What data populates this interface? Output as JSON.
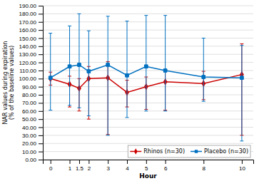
{
  "chart_data": {
    "type": "line",
    "x_label": "Hour",
    "y_label": "NAR values during expiration\n(% of the baseline values)",
    "x": [
      0,
      1,
      1.5,
      2,
      3,
      4,
      5,
      6,
      8,
      10
    ],
    "series": [
      {
        "name": "Rhinos (n=30)",
        "color": "#cc0000",
        "marker": "diamond",
        "values": [
          100.0,
          93.0,
          88.0,
          100.0,
          101.0,
          83.0,
          90.0,
          96.0,
          94.0,
          105.0
        ],
        "error_lower": [
          8,
          28,
          28,
          50,
          70,
          18,
          28,
          35,
          20,
          75
        ],
        "error_upper": [
          8,
          10,
          12,
          15,
          20,
          15,
          12,
          15,
          15,
          38
        ]
      },
      {
        "name": "Placebo (n=30)",
        "color": "#0070c0",
        "marker": "square",
        "values": [
          101.0,
          115.0,
          117.0,
          109.0,
          117.0,
          104.0,
          115.0,
          110.0,
          102.0,
          101.0
        ],
        "error_lower": [
          40,
          48,
          53,
          55,
          87,
          52,
          55,
          50,
          30,
          78
        ],
        "error_upper": [
          55,
          50,
          63,
          50,
          60,
          67,
          63,
          68,
          48,
          40
        ]
      }
    ],
    "xlim": [
      -0.4,
      10.6
    ],
    "xticks": [
      0,
      1,
      1.5,
      2,
      3,
      4,
      5,
      6,
      8,
      10
    ],
    "ylim": [
      0.0,
      190.0
    ],
    "yticks": [
      {
        "value": 0.0,
        "label": "0.00"
      },
      {
        "value": 10.0,
        "label": "10.00"
      },
      {
        "value": 20.0,
        "label": "20.00"
      },
      {
        "value": 30.0,
        "label": "30.00"
      },
      {
        "value": 40.0,
        "label": "40.00"
      },
      {
        "value": 50.0,
        "label": "50.00"
      },
      {
        "value": 60.0,
        "label": "60.00"
      },
      {
        "value": 70.0,
        "label": "70.00"
      },
      {
        "value": 80.0,
        "label": "80.00"
      },
      {
        "value": 90.0,
        "label": "90.00"
      },
      {
        "value": 100.0,
        "label": "100.00"
      },
      {
        "value": 110.0,
        "label": "110.00"
      },
      {
        "value": 120.0,
        "label": "120.00"
      },
      {
        "value": 130.0,
        "label": "130.00"
      },
      {
        "value": 140.0,
        "label": "140.00"
      },
      {
        "value": 150.0,
        "label": "150.00"
      },
      {
        "value": 160.0,
        "label": "160.00"
      },
      {
        "value": 170.0,
        "label": "170.00"
      },
      {
        "value": 180.0,
        "label": "180.00"
      },
      {
        "value": 190.0,
        "label": "190.00"
      }
    ],
    "grid": "y",
    "legend": "lower right"
  }
}
